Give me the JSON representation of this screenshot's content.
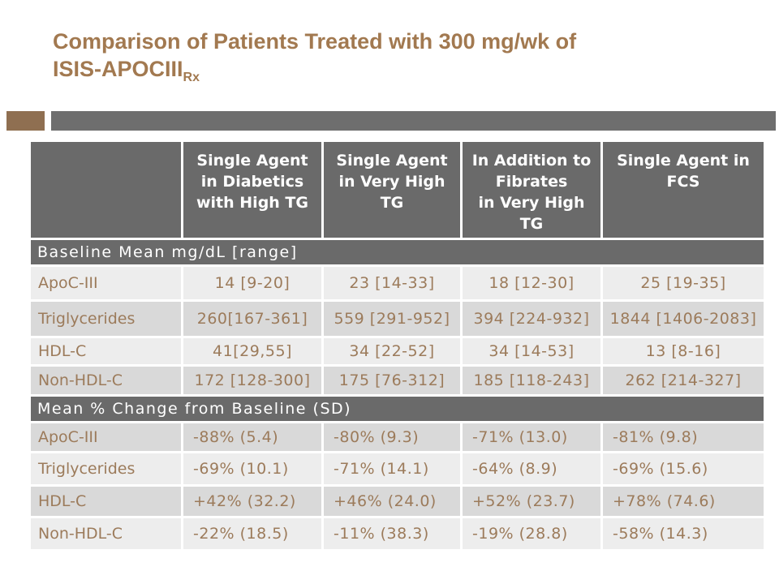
{
  "slide": {
    "title_line1": "Comparison of Patients Treated with 300 mg/wk of",
    "title_line2_main": "ISIS-APOCIII",
    "title_line2_sub": "Rx"
  },
  "colors": {
    "title_brown": "#A27950",
    "accent_square_brown": "#8F6F51",
    "accent_bar_gray": "#6E6E6E",
    "header_gray": "#6A6A6A",
    "row_light_gray": "#EDEDED",
    "row_medium_gray": "#D9D9D9",
    "table_text_brown": "#9C7B5B"
  },
  "table": {
    "column_headers": [
      "",
      "Single Agent\nin Diabetics\nwith High TG",
      "Single Agent\nin Very High\nTG",
      "In Addition to\nFibrates\nin Very High\nTG",
      "Single Agent in\nFCS"
    ],
    "sections": [
      {
        "header": "Baseline Mean mg/dL [range]",
        "rows": [
          {
            "label": "ApoC-III",
            "values": [
              "14 [9-20]",
              "23 [14-33]",
              "18 [12-30]",
              "25 [19-35]"
            ]
          },
          {
            "label": "Triglycerides",
            "values": [
              "260[167-361]",
              "559 [291-952]",
              "394 [224-932]",
              "1844 [1406-2083]"
            ]
          },
          {
            "label": "HDL-C",
            "values": [
              "41[29,55]",
              "34 [22-52]",
              "34 [14-53]",
              "13 [8-16]"
            ]
          },
          {
            "label": "Non-HDL-C",
            "values": [
              "172 [128-300]",
              "175 [76-312]",
              "185 [118-243]",
              "262 [214-327]"
            ]
          }
        ]
      },
      {
        "header": "Mean % Change from Baseline (SD)",
        "rows": [
          {
            "label": "ApoC-III",
            "values": [
              "-88% (5.4)",
              "-80% (9.3)",
              "-71% (13.0)",
              "-81% (9.8)"
            ]
          },
          {
            "label": "Triglycerides",
            "values": [
              "-69% (10.1)",
              "-71% (14.1)",
              "-64% (8.9)",
              "-69% (15.6)"
            ]
          },
          {
            "label": "HDL-C",
            "values": [
              "+42% (32.2)",
              "+46% (24.0)",
              "+52% (23.7)",
              "+78% (74.6)"
            ]
          },
          {
            "label": "Non-HDL-C",
            "values": [
              "-22% (18.5)",
              "-11% (38.3)",
              "-19% (28.8)",
              "-58% (14.3)"
            ]
          }
        ]
      }
    ]
  }
}
